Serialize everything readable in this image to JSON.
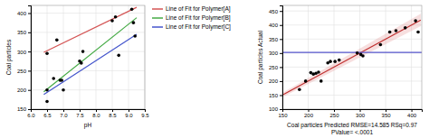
{
  "chart_data": [
    {
      "type": "scatter",
      "x_label": "pH",
      "y_label": "Coal particles",
      "xlim": [
        6.0,
        9.5
      ],
      "ylim": [
        150,
        420
      ],
      "xticks": [
        {
          "value": 6,
          "label": "6.0"
        },
        6.5,
        {
          "value": 7,
          "label": "7.0"
        },
        7.5,
        {
          "value": 8,
          "label": "8.0"
        },
        8.5,
        {
          "value": 9,
          "label": "9.0"
        },
        9.5
      ],
      "yticks": [
        150,
        200,
        250,
        300,
        350,
        400
      ],
      "grid": true,
      "legend": "right",
      "series": [
        {
          "type": "scatter",
          "color": "black",
          "marker": "circle",
          "x": [
            6.5,
            6.5,
            6.5,
            6.7,
            6.8,
            6.9,
            6.95,
            7.0,
            7.5,
            7.55,
            7.6,
            8.5,
            8.6,
            8.7,
            9.1,
            9.15,
            9.2
          ],
          "values": [
            295,
            170,
            200,
            230,
            330,
            225,
            225,
            200,
            275,
            270,
            300,
            380,
            390,
            290,
            410,
            375,
            340
          ]
        },
        {
          "name": "Line of Fit for Polymer[A]",
          "type": "line",
          "color": "#d45555",
          "x": [
            6.4,
            9.25
          ],
          "values": [
            298,
            415
          ]
        },
        {
          "name": "Line of Fit for Polymer[B]",
          "type": "line",
          "color": "#44aa44",
          "x": [
            6.4,
            9.25
          ],
          "values": [
            195,
            388
          ]
        },
        {
          "name": "Line of Fit for Polymer[C]",
          "type": "line",
          "color": "#4455cc",
          "x": [
            6.4,
            9.25
          ],
          "values": [
            188,
            345
          ]
        }
      ]
    },
    {
      "type": "scatter",
      "x_label": "Coal particles Predicted RMSE=14.585 RSq=0.97\nPValue= <.0001",
      "y_label": "Coal particles Actual",
      "xlim": [
        150,
        420
      ],
      "ylim": [
        100,
        470
      ],
      "xticks": [
        150,
        200,
        250,
        300,
        350,
        400
      ],
      "yticks": [
        100,
        150,
        200,
        250,
        300,
        350,
        400,
        450
      ],
      "grid": true,
      "series": [
        {
          "type": "scatter",
          "color": "black",
          "marker": "circle",
          "x": [
            183,
            195,
            205,
            210,
            215,
            220,
            225,
            238,
            243,
            252,
            260,
            295,
            302,
            306,
            340,
            358,
            370,
            388,
            408,
            413
          ],
          "values": [
            170,
            200,
            230,
            225,
            228,
            232,
            200,
            265,
            270,
            270,
            275,
            300,
            295,
            290,
            330,
            375,
            380,
            390,
            415,
            375
          ]
        },
        {
          "type": "line",
          "color": "#c03030",
          "x": [
            152,
            418
          ],
          "values": [
            152,
            418
          ]
        },
        {
          "type": "area",
          "color": "#e08080",
          "x": [
            152,
            418
          ],
          "lower": [
            144,
            396
          ],
          "upper": [
            160,
            440
          ]
        },
        {
          "type": "hline",
          "color": "#5555cc",
          "values": [
            302
          ]
        }
      ]
    }
  ]
}
